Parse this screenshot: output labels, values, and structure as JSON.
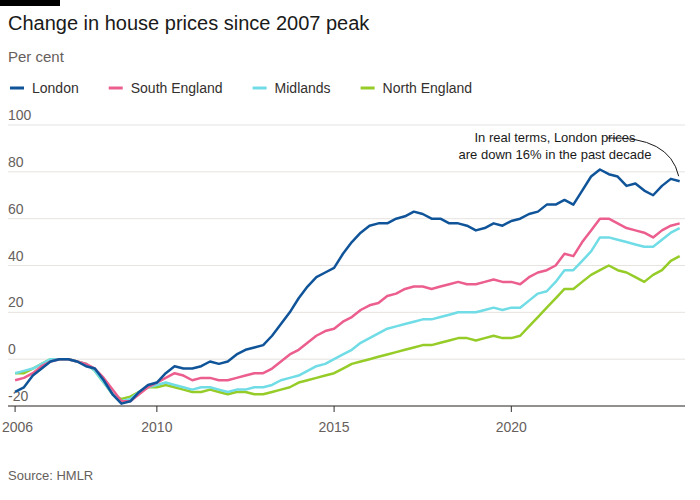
{
  "chart_data": {
    "type": "line",
    "title": "Change in house prices since 2007 peak",
    "subtitle": "Per cent",
    "source": "Source: HMLR",
    "annotations": [
      {
        "lines": [
          "In real terms, London prices",
          "are down 16% in the past decade"
        ]
      }
    ],
    "legend": "top",
    "grid": true,
    "xlim": [
      2005.8,
      2024.9
    ],
    "xticks": [
      2006,
      2010,
      2015,
      2020
    ],
    "ylim": [
      -20,
      100
    ],
    "yticks": [
      -20,
      0,
      20,
      40,
      60,
      80,
      100
    ],
    "x": [
      2006,
      2006.25,
      2006.5,
      2006.75,
      2007,
      2007.25,
      2007.5,
      2007.75,
      2008,
      2008.25,
      2008.5,
      2008.75,
      2009,
      2009.25,
      2009.5,
      2009.75,
      2010,
      2010.25,
      2010.5,
      2010.75,
      2011,
      2011.25,
      2011.5,
      2011.75,
      2012,
      2012.25,
      2012.5,
      2012.75,
      2013,
      2013.25,
      2013.5,
      2013.75,
      2014,
      2014.25,
      2014.5,
      2014.75,
      2015,
      2015.25,
      2015.5,
      2015.75,
      2016,
      2016.25,
      2016.5,
      2016.75,
      2017,
      2017.25,
      2017.5,
      2017.75,
      2018,
      2018.25,
      2018.5,
      2018.75,
      2019,
      2019.25,
      2019.5,
      2019.75,
      2020,
      2020.25,
      2020.5,
      2020.75,
      2021,
      2021.25,
      2021.5,
      2021.75,
      2022,
      2022.25,
      2022.5,
      2022.75,
      2023,
      2023.25,
      2023.5,
      2023.75,
      2024,
      2024.25,
      2024.5,
      2024.75
    ],
    "series": [
      {
        "name": "London",
        "color": "#0f5499",
        "values": [
          -14,
          -12,
          -7,
          -4,
          -1,
          0,
          0,
          -1,
          -3,
          -4,
          -9,
          -15,
          -19,
          -18,
          -14,
          -11,
          -10,
          -6,
          -3,
          -4,
          -4,
          -3,
          -1,
          -2,
          -1,
          2,
          4,
          5,
          6,
          10,
          15,
          20,
          26,
          31,
          35,
          37,
          39,
          45,
          50,
          54,
          57,
          58,
          58,
          60,
          61,
          63,
          62,
          60,
          60,
          58,
          58,
          57,
          55,
          56,
          58,
          57,
          59,
          60,
          62,
          63,
          66,
          66,
          68,
          66,
          72,
          78,
          81,
          79,
          78,
          74,
          75,
          72,
          70,
          74,
          77,
          76
        ]
      },
      {
        "name": "South England",
        "color": "#eb5e8d",
        "values": [
          -9,
          -8,
          -6,
          -3,
          -1,
          0,
          0,
          -1,
          -2,
          -4,
          -8,
          -13,
          -18,
          -18,
          -15,
          -12,
          -10,
          -8,
          -6,
          -7,
          -9,
          -8,
          -8,
          -9,
          -9,
          -8,
          -7,
          -6,
          -6,
          -4,
          -1,
          2,
          4,
          7,
          10,
          12,
          13,
          16,
          18,
          21,
          23,
          24,
          27,
          28,
          30,
          31,
          31,
          30,
          31,
          32,
          33,
          32,
          32,
          33,
          34,
          33,
          33,
          32,
          35,
          37,
          38,
          40,
          45,
          44,
          50,
          55,
          60,
          60,
          58,
          56,
          55,
          54,
          52,
          55,
          57,
          58
        ]
      },
      {
        "name": "Midlands",
        "color": "#70dce6",
        "values": [
          -6,
          -5,
          -4,
          -2,
          0,
          0,
          0,
          -1,
          -2,
          -5,
          -10,
          -15,
          -18,
          -17,
          -14,
          -12,
          -11,
          -10,
          -11,
          -12,
          -13,
          -12,
          -12,
          -13,
          -14,
          -13,
          -13,
          -12,
          -12,
          -11,
          -9,
          -8,
          -7,
          -5,
          -3,
          -2,
          0,
          2,
          4,
          7,
          9,
          11,
          13,
          14,
          15,
          16,
          17,
          17,
          18,
          19,
          20,
          20,
          20,
          21,
          22,
          21,
          22,
          22,
          25,
          28,
          29,
          33,
          38,
          38,
          42,
          46,
          52,
          52,
          51,
          50,
          49,
          48,
          48,
          51,
          54,
          56
        ]
      },
      {
        "name": "North England",
        "color": "#96cc28",
        "values": [
          -6,
          -6,
          -4,
          -2,
          0,
          0,
          0,
          -1,
          -2,
          -5,
          -10,
          -15,
          -17,
          -16,
          -14,
          -12,
          -12,
          -11,
          -12,
          -13,
          -14,
          -14,
          -13,
          -14,
          -15,
          -14,
          -14,
          -15,
          -15,
          -14,
          -13,
          -12,
          -10,
          -9,
          -8,
          -7,
          -6,
          -4,
          -2,
          -1,
          0,
          1,
          2,
          3,
          4,
          5,
          6,
          6,
          7,
          8,
          9,
          9,
          8,
          9,
          10,
          9,
          9,
          10,
          14,
          18,
          22,
          26,
          30,
          30,
          33,
          36,
          38,
          40,
          38,
          37,
          35,
          33,
          36,
          38,
          42,
          44
        ]
      }
    ]
  }
}
